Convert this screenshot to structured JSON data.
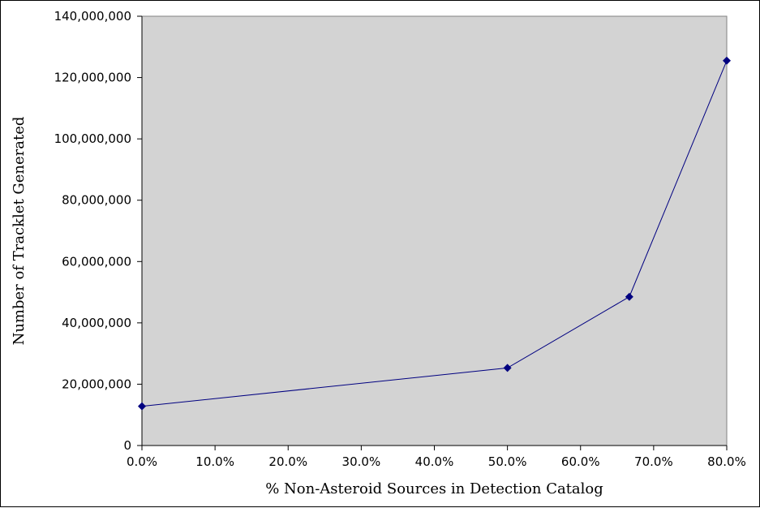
{
  "chart_data": {
    "type": "line",
    "title": "",
    "xlabel": "% Non-Asteroid Sources in Detection Catalog",
    "ylabel": "Number of Tracklet Generated",
    "xlim": [
      0,
      0.8
    ],
    "ylim": [
      0,
      140000000
    ],
    "x_ticks": [
      "0.0%",
      "10.0%",
      "20.0%",
      "30.0%",
      "40.0%",
      "50.0%",
      "60.0%",
      "70.0%",
      "80.0%"
    ],
    "y_ticks": [
      "0",
      "20,000,000",
      "40,000,000",
      "60,000,000",
      "80,000,000",
      "100,000,000",
      "120,000,000",
      "140,000,000"
    ],
    "grid": false,
    "legend": "none",
    "colors": {
      "plot_area": "#d3d3d3",
      "series": "#000080"
    },
    "series": [
      {
        "x": [
          0.0,
          0.5,
          0.6667,
          0.8
        ],
        "y": [
          12800000,
          25300000,
          48500000,
          125500000
        ]
      }
    ]
  }
}
